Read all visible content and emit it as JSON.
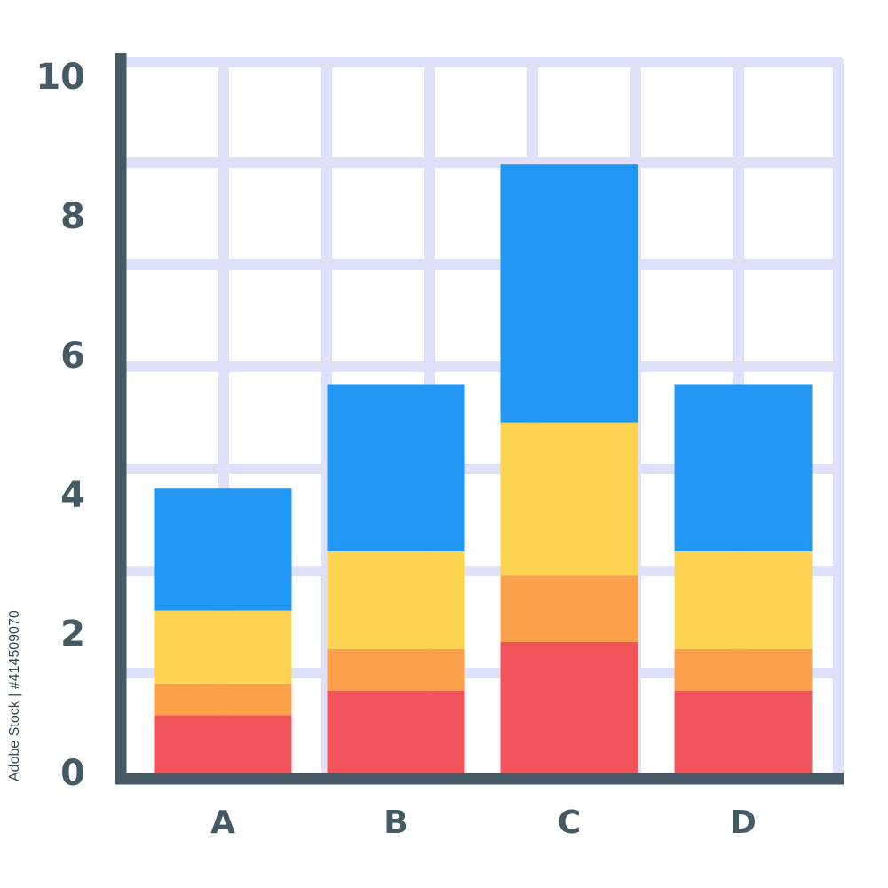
{
  "watermark": "Adobe Stock | #414509070",
  "colors": {
    "grid": "#dfe1fb",
    "axis": "#455a64",
    "layers": [
      "#f2545b",
      "#fca04c",
      "#fdd451",
      "#2196f3"
    ]
  },
  "chart_data": {
    "type": "bar",
    "stacked": true,
    "categories": [
      "A",
      "B",
      "C",
      "D"
    ],
    "series": [
      {
        "color": "#f2545b",
        "values": [
          0.9,
          1.25,
          1.95,
          1.25
        ]
      },
      {
        "color": "#fca04c",
        "values": [
          0.45,
          0.6,
          0.95,
          0.6
        ]
      },
      {
        "color": "#fdd451",
        "values": [
          1.05,
          1.4,
          2.2,
          1.4
        ]
      },
      {
        "color": "#2196f3",
        "values": [
          1.75,
          2.4,
          3.7,
          2.4
        ]
      }
    ],
    "yticks": [
      "0",
      "2",
      "4",
      "6",
      "8",
      "10"
    ],
    "ylim": [
      0,
      10.5
    ],
    "grid": true,
    "xlabel": "",
    "ylabel": "",
    "title": ""
  }
}
